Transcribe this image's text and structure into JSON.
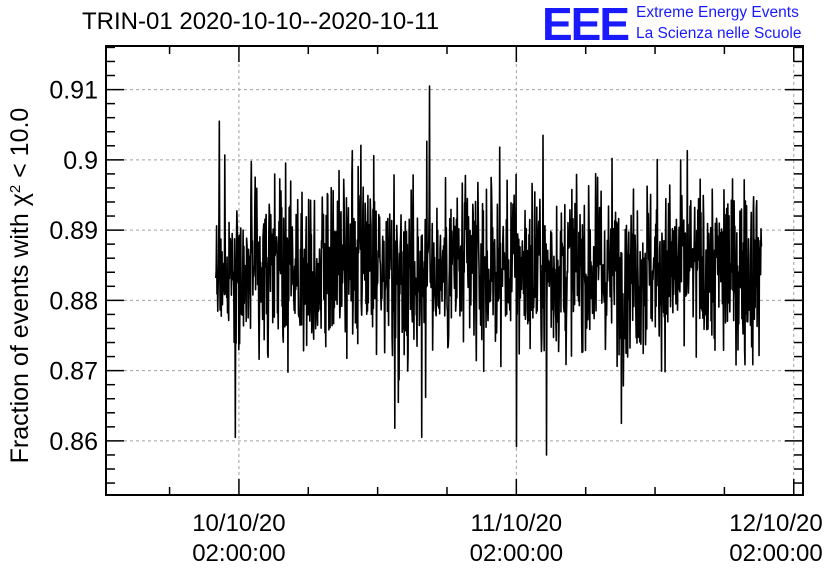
{
  "header": {
    "title": "TRIN-01 2020-10-10--2020-10-11"
  },
  "logo": {
    "mark": "EEE",
    "line1": "Extreme Energy Events",
    "line2": "La Scienza nelle Scuole",
    "color": "#1a1aff"
  },
  "chart_data": {
    "type": "line",
    "title": "TRIN-01 2020-10-10--2020-10-11",
    "xlabel": "",
    "ylabel_prefix": "Fraction of events with ",
    "ylabel_symbol": "χ",
    "ylabel_sup": "2",
    "ylabel_suffix": " < 10.0",
    "x_tick_labels": [
      {
        "date": "10/10/20",
        "time": "02:00:00"
      },
      {
        "date": "11/10/20",
        "time": "02:00:00"
      },
      {
        "date": "12/10/20",
        "time": "02:00:00"
      }
    ],
    "x_range_hours": [
      -11.5,
      48.8
    ],
    "data_range_hours": [
      -2.0,
      45.2
    ],
    "ylim": [
      0.8523,
      0.9162
    ],
    "yticks": [
      0.86,
      0.87,
      0.88,
      0.89,
      0.9,
      0.91
    ],
    "ytick_labels": [
      "0.86",
      "0.87",
      "0.88",
      "0.89",
      "0.9",
      "0.91"
    ],
    "grid": true,
    "line_color": "#000000",
    "series": [
      {
        "mean": 0.8845,
        "noise_std": 0.0072,
        "approx_points": 1400,
        "peaks": [
          {
            "t_hours": -1.7,
            "value": 0.9055
          },
          {
            "t_hours": 16.5,
            "value": 0.9105
          },
          {
            "t_hours": -0.3,
            "value": 0.8605
          },
          {
            "t_hours": 24.0,
            "value": 0.8592
          },
          {
            "t_hours": 26.6,
            "value": 0.858
          },
          {
            "t_hours": 15.8,
            "value": 0.8605
          },
          {
            "t_hours": 13.5,
            "value": 0.8618
          },
          {
            "t_hours": 33.1,
            "value": 0.8625
          },
          {
            "t_hours": 31.2,
            "value": 0.8932
          },
          {
            "t_hours": 38.8,
            "value": 0.9013
          },
          {
            "t_hours": 9.8,
            "value": 0.9013
          },
          {
            "t_hours": 26.3,
            "value": 0.9035
          }
        ]
      }
    ]
  }
}
